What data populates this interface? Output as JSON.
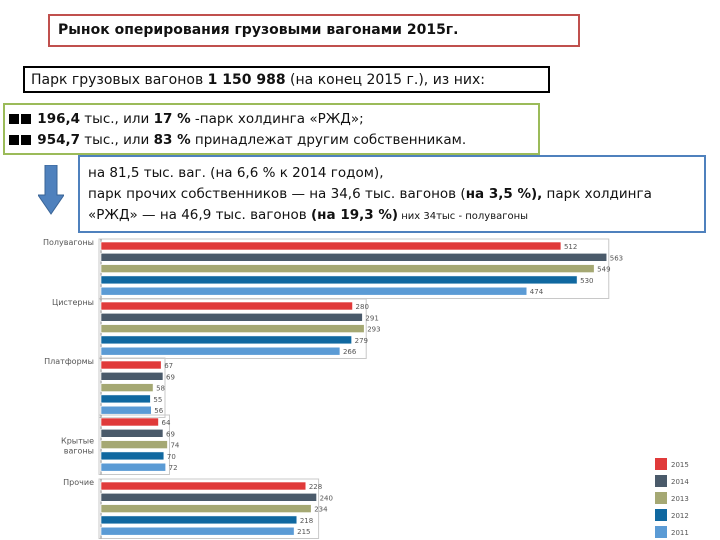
{
  "title": "Рынок оперирования грузовыми вагонами 2015г.",
  "fleet": {
    "pre": "Парк грузовых вагонов ",
    "count": "1 150 988",
    "post": " (на конец 2015 г.), из них:"
  },
  "owners": {
    "rzd_value": "196,4",
    "rzd_mid": " тыс., или ",
    "rzd_pct": "17 %",
    "rzd_tail": " -парк холдинга «РЖД»;",
    "other_value": "954,7",
    "other_mid": " тыс., или ",
    "other_pct": "83 %",
    "other_tail": " принадлежат другим собственникам."
  },
  "change": {
    "line1": "на 81,5 тыс. ваг. (на 6,6 % к 2014 годом),",
    "line2_pre": "парк прочих собственников — на 34,6 тыс. вагонов (",
    "line2_bold": "на 3,5 %),",
    "line2_post": " парк холдинга",
    "line3_pre": "«РЖД» — на 46,9 тыс. вагонов ",
    "line3_bold": "(на 19,3 %)",
    "line3_note": " них 34тыс - полувагоны"
  },
  "chart_data": {
    "type": "bar",
    "orientation": "horizontal",
    "categories": [
      "Полувагоны",
      "Цистерны",
      "Платформы",
      "Крытые вагоны",
      "Прочие"
    ],
    "series": [
      {
        "name": "2015",
        "color": "#e03a3a",
        "values": [
          512,
          280,
          67,
          64,
          228
        ]
      },
      {
        "name": "2014",
        "color": "#4a5a6a",
        "values": [
          563,
          291,
          69,
          69,
          240
        ]
      },
      {
        "name": "2013",
        "color": "#a5a873",
        "values": [
          549,
          293,
          58,
          74,
          234
        ]
      },
      {
        "name": "2012",
        "color": "#1068a0",
        "values": [
          530,
          279,
          55,
          70,
          218
        ]
      },
      {
        "name": "2011",
        "color": "#5b9bd5",
        "values": [
          474,
          266,
          56,
          72,
          215
        ]
      }
    ],
    "xlim": [
      0,
      600
    ],
    "legend_position": "bottom-right",
    "grid": false
  }
}
